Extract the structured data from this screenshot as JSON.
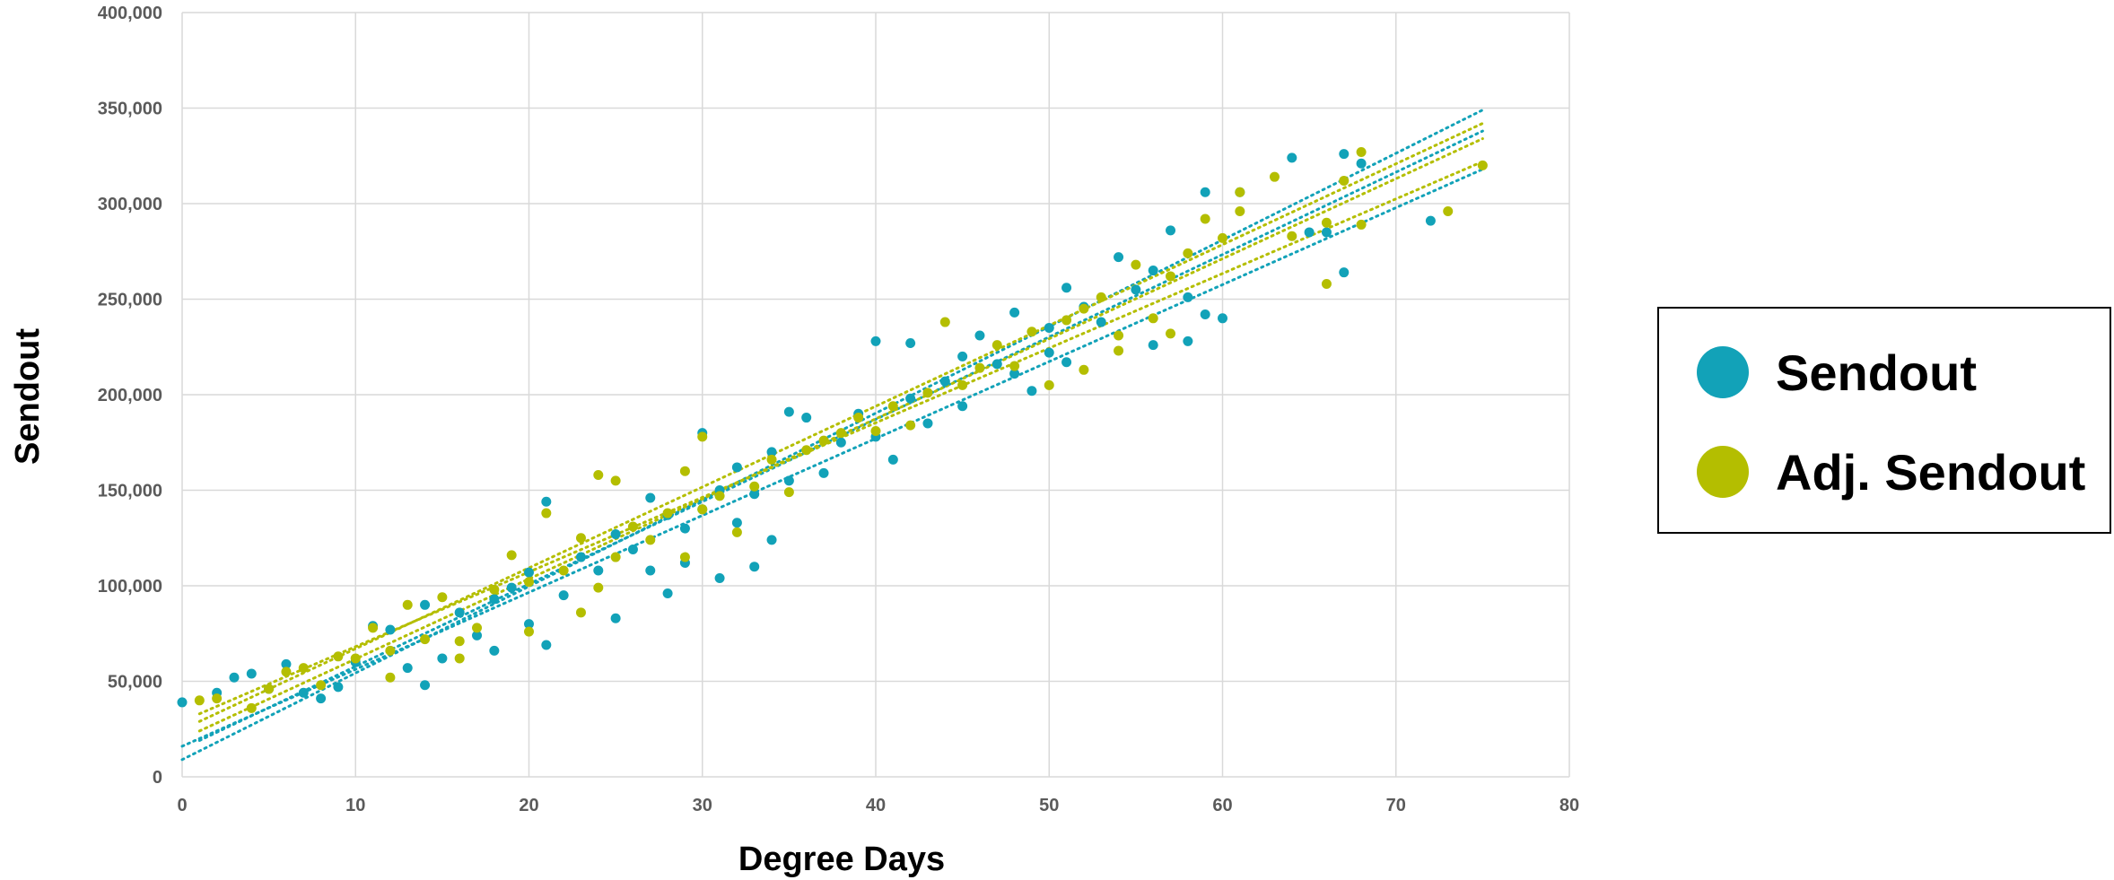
{
  "chart_data": {
    "type": "scatter",
    "xlabel": "Degree Days",
    "ylabel": "Sendout",
    "xlim": [
      0,
      80
    ],
    "ylim": [
      0,
      400000
    ],
    "x_ticks": [
      "0",
      "10",
      "20",
      "30",
      "40",
      "50",
      "60",
      "70",
      "80"
    ],
    "y_ticks": [
      "0",
      "50,000",
      "100,000",
      "150,000",
      "200,000",
      "250,000",
      "300,000",
      "350,000",
      "400,000"
    ],
    "grid": true,
    "legend_position": "right",
    "series": [
      {
        "name": "Sendout",
        "color": "#12a2b8",
        "points": [
          [
            0,
            39000
          ],
          [
            2,
            44000
          ],
          [
            3,
            52000
          ],
          [
            4,
            54000
          ],
          [
            5,
            46000
          ],
          [
            6,
            59000
          ],
          [
            7,
            44000
          ],
          [
            8,
            41000
          ],
          [
            9,
            47000
          ],
          [
            10,
            60000
          ],
          [
            11,
            79000
          ],
          [
            12,
            77000
          ],
          [
            13,
            57000
          ],
          [
            14,
            48000
          ],
          [
            14,
            90000
          ],
          [
            15,
            62000
          ],
          [
            16,
            86000
          ],
          [
            17,
            74000
          ],
          [
            18,
            66000
          ],
          [
            18,
            93000
          ],
          [
            19,
            99000
          ],
          [
            20,
            80000
          ],
          [
            20,
            107000
          ],
          [
            21,
            69000
          ],
          [
            21,
            144000
          ],
          [
            22,
            95000
          ],
          [
            23,
            115000
          ],
          [
            24,
            108000
          ],
          [
            25,
            83000
          ],
          [
            25,
            127000
          ],
          [
            26,
            119000
          ],
          [
            27,
            108000
          ],
          [
            27,
            146000
          ],
          [
            28,
            96000
          ],
          [
            28,
            137000
          ],
          [
            29,
            130000
          ],
          [
            29,
            112000
          ],
          [
            30,
            180000
          ],
          [
            30,
            140000
          ],
          [
            31,
            104000
          ],
          [
            31,
            150000
          ],
          [
            32,
            133000
          ],
          [
            32,
            162000
          ],
          [
            33,
            110000
          ],
          [
            33,
            148000
          ],
          [
            34,
            124000
          ],
          [
            34,
            170000
          ],
          [
            35,
            191000
          ],
          [
            35,
            155000
          ],
          [
            36,
            188000
          ],
          [
            37,
            159000
          ],
          [
            38,
            175000
          ],
          [
            39,
            190000
          ],
          [
            40,
            228000
          ],
          [
            40,
            178000
          ],
          [
            41,
            166000
          ],
          [
            42,
            198000
          ],
          [
            42,
            227000
          ],
          [
            43,
            185000
          ],
          [
            44,
            207000
          ],
          [
            45,
            220000
          ],
          [
            45,
            194000
          ],
          [
            46,
            231000
          ],
          [
            47,
            216000
          ],
          [
            48,
            243000
          ],
          [
            48,
            211000
          ],
          [
            49,
            202000
          ],
          [
            50,
            235000
          ],
          [
            50,
            222000
          ],
          [
            51,
            256000
          ],
          [
            51,
            217000
          ],
          [
            52,
            246000
          ],
          [
            53,
            238000
          ],
          [
            54,
            272000
          ],
          [
            55,
            255000
          ],
          [
            56,
            265000
          ],
          [
            56,
            226000
          ],
          [
            57,
            286000
          ],
          [
            58,
            228000
          ],
          [
            58,
            251000
          ],
          [
            59,
            306000
          ],
          [
            59,
            242000
          ],
          [
            60,
            240000
          ],
          [
            61,
            306000
          ],
          [
            64,
            324000
          ],
          [
            65,
            285000
          ],
          [
            66,
            285000
          ],
          [
            67,
            326000
          ],
          [
            67,
            264000
          ],
          [
            68,
            321000
          ],
          [
            72,
            291000
          ]
        ]
      },
      {
        "name": "Adj. Sendout",
        "color": "#b4be00",
        "points": [
          [
            1,
            40000
          ],
          [
            2,
            41000
          ],
          [
            4,
            36000
          ],
          [
            5,
            46000
          ],
          [
            6,
            55000
          ],
          [
            7,
            57000
          ],
          [
            8,
            48000
          ],
          [
            9,
            63000
          ],
          [
            10,
            62000
          ],
          [
            11,
            78000
          ],
          [
            12,
            52000
          ],
          [
            12,
            66000
          ],
          [
            13,
            90000
          ],
          [
            14,
            72000
          ],
          [
            15,
            94000
          ],
          [
            16,
            62000
          ],
          [
            16,
            71000
          ],
          [
            17,
            78000
          ],
          [
            18,
            98000
          ],
          [
            19,
            116000
          ],
          [
            20,
            102000
          ],
          [
            20,
            76000
          ],
          [
            21,
            138000
          ],
          [
            22,
            108000
          ],
          [
            23,
            86000
          ],
          [
            23,
            125000
          ],
          [
            24,
            158000
          ],
          [
            24,
            99000
          ],
          [
            25,
            115000
          ],
          [
            25,
            155000
          ],
          [
            26,
            131000
          ],
          [
            27,
            124000
          ],
          [
            28,
            138000
          ],
          [
            29,
            160000
          ],
          [
            29,
            115000
          ],
          [
            30,
            140000
          ],
          [
            30,
            178000
          ],
          [
            31,
            147000
          ],
          [
            32,
            128000
          ],
          [
            33,
            152000
          ],
          [
            34,
            166000
          ],
          [
            35,
            149000
          ],
          [
            36,
            171000
          ],
          [
            37,
            176000
          ],
          [
            38,
            180000
          ],
          [
            39,
            188000
          ],
          [
            40,
            181000
          ],
          [
            41,
            194000
          ],
          [
            42,
            184000
          ],
          [
            43,
            201000
          ],
          [
            44,
            238000
          ],
          [
            45,
            205000
          ],
          [
            46,
            214000
          ],
          [
            47,
            226000
          ],
          [
            48,
            215000
          ],
          [
            49,
            233000
          ],
          [
            50,
            205000
          ],
          [
            51,
            239000
          ],
          [
            52,
            245000
          ],
          [
            52,
            213000
          ],
          [
            53,
            251000
          ],
          [
            54,
            231000
          ],
          [
            54,
            223000
          ],
          [
            55,
            268000
          ],
          [
            56,
            240000
          ],
          [
            57,
            262000
          ],
          [
            57,
            232000
          ],
          [
            58,
            274000
          ],
          [
            59,
            292000
          ],
          [
            60,
            282000
          ],
          [
            61,
            296000
          ],
          [
            61,
            306000
          ],
          [
            63,
            314000
          ],
          [
            64,
            283000
          ],
          [
            66,
            258000
          ],
          [
            66,
            290000
          ],
          [
            67,
            312000
          ],
          [
            68,
            327000
          ],
          [
            68,
            289000
          ],
          [
            73,
            296000
          ],
          [
            75,
            320000
          ]
        ]
      }
    ],
    "trendlines": [
      {
        "series": "Sendout",
        "color": "#12a2b8",
        "style": "dotted",
        "x": [
          0,
          75
        ],
        "y": [
          9000,
          349000
        ]
      },
      {
        "series": "Sendout",
        "color": "#12a2b8",
        "style": "dotted",
        "x": [
          0,
          75
        ],
        "y": [
          16000,
          318000
        ]
      },
      {
        "series": "Sendout",
        "color": "#12a2b8",
        "style": "dotted",
        "x": [
          1,
          75
        ],
        "y": [
          19000,
          338000
        ]
      },
      {
        "series": "Adj. Sendout",
        "color": "#b4be00",
        "style": "dotted",
        "x": [
          1,
          75
        ],
        "y": [
          24000,
          334000
        ]
      },
      {
        "series": "Adj. Sendout",
        "color": "#b4be00",
        "style": "dotted",
        "x": [
          1,
          75
        ],
        "y": [
          29000,
          342000
        ]
      },
      {
        "series": "Adj. Sendout",
        "color": "#b4be00",
        "style": "dotted",
        "x": [
          1,
          75
        ],
        "y": [
          33000,
          322000
        ]
      }
    ]
  }
}
